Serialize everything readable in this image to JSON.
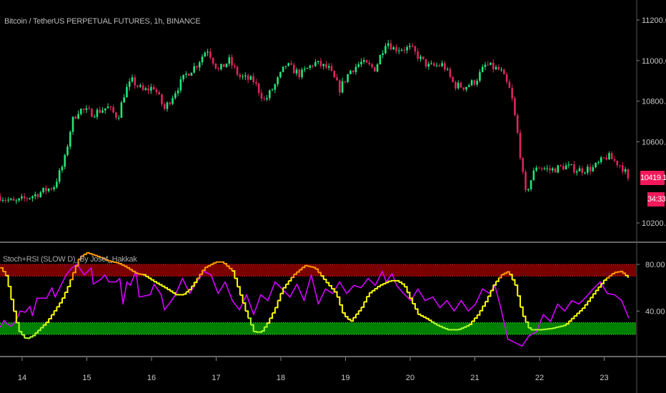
{
  "header": {
    "title": "Bitcoin / TetherUS PERPETUAL FUTURES, 1h, BINANCE"
  },
  "price_axis": {
    "ticks": [
      11200,
      11000,
      10800,
      10600,
      10200
    ],
    "tick_labels": [
      "11200.00",
      "11000.00",
      "10800.00",
      "10600.00",
      "10200.00"
    ],
    "last_price": "10419.14",
    "countdown": "34:33"
  },
  "indicator": {
    "title": "Stoch+RSI (SLOW D)_By Josef_Hakkak",
    "ticks": [
      80,
      40
    ],
    "tick_labels": [
      "80.00",
      "40.00"
    ],
    "overbought_band": [
      70,
      80
    ],
    "oversold_band": [
      20,
      30
    ]
  },
  "time_axis": {
    "labels": [
      "14",
      "15",
      "16",
      "17",
      "18",
      "19",
      "20",
      "21",
      "22",
      "23"
    ]
  },
  "colors": {
    "background": "#000000",
    "up_candle": "#22e67a",
    "down_candle": "#e0245e",
    "stoch": "#ffff00",
    "stoch_high": "#ff9800",
    "stoch_low": "#adff2f",
    "rsi": "#d400ff",
    "overbought_fill": "#7a0000",
    "oversold_fill": "#008000",
    "price_tag": "#f2195a"
  },
  "chart_data": [
    {
      "type": "candlestick",
      "x_unit": "day of month",
      "price_path": [
        [
          13.66,
          10330
        ],
        [
          13.88,
          10300
        ],
        [
          14.21,
          10340
        ],
        [
          14.49,
          10380
        ],
        [
          14.65,
          10500
        ],
        [
          14.77,
          10700
        ],
        [
          14.88,
          10760
        ],
        [
          15.1,
          10740
        ],
        [
          15.32,
          10770
        ],
        [
          15.48,
          10720
        ],
        [
          15.59,
          10850
        ],
        [
          15.7,
          10900
        ],
        [
          15.87,
          10850
        ],
        [
          16.04,
          10870
        ],
        [
          16.2,
          10760
        ],
        [
          16.37,
          10850
        ],
        [
          16.53,
          10930
        ],
        [
          16.7,
          10980
        ],
        [
          16.86,
          11060
        ],
        [
          17.03,
          10950
        ],
        [
          17.2,
          11000
        ],
        [
          17.36,
          10920
        ],
        [
          17.58,
          10900
        ],
        [
          17.75,
          10800
        ],
        [
          17.91,
          10880
        ],
        [
          18.08,
          10980
        ],
        [
          18.3,
          10930
        ],
        [
          18.52,
          10990
        ],
        [
          18.74,
          10960
        ],
        [
          18.91,
          10860
        ],
        [
          19.07,
          10950
        ],
        [
          19.24,
          10990
        ],
        [
          19.46,
          10960
        ],
        [
          19.63,
          11100
        ],
        [
          19.74,
          11060
        ],
        [
          20.01,
          11060
        ],
        [
          20.18,
          11000
        ],
        [
          20.29,
          10970
        ],
        [
          20.51,
          10980
        ],
        [
          20.68,
          10880
        ],
        [
          20.84,
          10870
        ],
        [
          21.01,
          10900
        ],
        [
          21.17,
          10980
        ],
        [
          21.4,
          10950
        ],
        [
          21.56,
          10840
        ],
        [
          21.67,
          10620
        ],
        [
          21.78,
          10340
        ],
        [
          21.95,
          10480
        ],
        [
          22.17,
          10460
        ],
        [
          22.39,
          10480
        ],
        [
          22.61,
          10460
        ],
        [
          22.83,
          10470
        ],
        [
          23.05,
          10530
        ],
        [
          23.27,
          10480
        ],
        [
          23.38,
          10419.14
        ]
      ],
      "ylim": [
        10100,
        11300
      ]
    },
    {
      "type": "line",
      "ylim": [
        0,
        100
      ],
      "series": [
        {
          "key": "stoch",
          "points": [
            [
              13.66,
              77
            ],
            [
              13.74,
              71
            ],
            [
              13.77,
              65
            ],
            [
              13.83,
              49
            ],
            [
              13.88,
              37
            ],
            [
              13.94,
              23
            ],
            [
              14.05,
              16
            ],
            [
              14.16,
              19
            ],
            [
              14.27,
              25
            ],
            [
              14.38,
              31
            ],
            [
              14.49,
              40
            ],
            [
              14.6,
              49
            ],
            [
              14.71,
              62
            ],
            [
              14.77,
              71
            ],
            [
              14.88,
              86
            ],
            [
              14.99,
              90
            ],
            [
              15.15,
              87
            ],
            [
              15.32,
              83
            ],
            [
              15.48,
              81
            ],
            [
              15.59,
              78
            ],
            [
              15.76,
              72
            ],
            [
              15.87,
              71
            ],
            [
              16.04,
              65
            ],
            [
              16.2,
              60
            ],
            [
              16.37,
              54
            ],
            [
              16.48,
              54
            ],
            [
              16.59,
              59
            ],
            [
              16.7,
              68
            ],
            [
              16.81,
              77
            ],
            [
              16.98,
              82
            ],
            [
              17.09,
              82
            ],
            [
              17.25,
              74
            ],
            [
              17.36,
              55
            ],
            [
              17.47,
              37
            ],
            [
              17.58,
              22
            ],
            [
              17.69,
              22
            ],
            [
              17.8,
              31
            ],
            [
              17.91,
              43
            ],
            [
              18.02,
              59
            ],
            [
              18.19,
              71
            ],
            [
              18.36,
              79
            ],
            [
              18.52,
              77
            ],
            [
              18.69,
              65
            ],
            [
              18.85,
              55
            ],
            [
              18.96,
              37
            ],
            [
              19.07,
              31
            ],
            [
              19.24,
              43
            ],
            [
              19.35,
              55
            ],
            [
              19.52,
              62
            ],
            [
              19.68,
              66
            ],
            [
              19.79,
              66
            ],
            [
              19.9,
              62
            ],
            [
              20.01,
              49
            ],
            [
              20.12,
              37
            ],
            [
              20.23,
              34
            ],
            [
              20.4,
              28
            ],
            [
              20.57,
              24
            ],
            [
              20.73,
              24
            ],
            [
              20.9,
              28
            ],
            [
              21.04,
              37
            ],
            [
              21.17,
              49
            ],
            [
              21.28,
              62
            ],
            [
              21.4,
              71
            ],
            [
              21.51,
              74
            ],
            [
              21.62,
              62
            ],
            [
              21.73,
              37
            ],
            [
              21.84,
              24
            ],
            [
              22.0,
              24
            ],
            [
              22.17,
              25
            ],
            [
              22.39,
              28
            ],
            [
              22.5,
              34
            ],
            [
              22.67,
              43
            ],
            [
              22.83,
              55
            ],
            [
              23.0,
              67
            ],
            [
              23.14,
              73
            ],
            [
              23.25,
              74
            ],
            [
              23.38,
              68
            ]
          ]
        },
        {
          "key": "rsi",
          "points": [
            [
              13.66,
              26
            ],
            [
              13.72,
              32
            ],
            [
              13.77,
              29
            ],
            [
              13.83,
              27
            ],
            [
              13.9,
              31
            ],
            [
              13.97,
              40
            ],
            [
              14.05,
              39
            ],
            [
              14.12,
              44
            ],
            [
              14.16,
              36
            ],
            [
              14.23,
              51
            ],
            [
              14.38,
              51
            ],
            [
              14.46,
              60
            ],
            [
              14.51,
              52
            ],
            [
              14.6,
              62
            ],
            [
              14.68,
              71
            ],
            [
              14.77,
              77
            ],
            [
              14.85,
              80
            ],
            [
              14.96,
              71
            ],
            [
              15.07,
              77
            ],
            [
              15.1,
              63
            ],
            [
              15.21,
              67
            ],
            [
              15.28,
              71
            ],
            [
              15.34,
              65
            ],
            [
              15.45,
              65
            ],
            [
              15.51,
              68
            ],
            [
              15.56,
              46
            ],
            [
              15.62,
              65
            ],
            [
              15.67,
              62
            ],
            [
              15.76,
              74
            ],
            [
              15.81,
              52
            ],
            [
              15.98,
              54
            ],
            [
              16.04,
              63
            ],
            [
              16.15,
              54
            ],
            [
              16.2,
              41
            ],
            [
              16.31,
              49
            ],
            [
              16.37,
              54
            ],
            [
              16.48,
              68
            ],
            [
              16.59,
              55
            ],
            [
              16.7,
              65
            ],
            [
              16.81,
              74
            ],
            [
              16.92,
              71
            ],
            [
              17.03,
              55
            ],
            [
              17.14,
              65
            ],
            [
              17.25,
              49
            ],
            [
              17.36,
              41
            ],
            [
              17.47,
              54
            ],
            [
              17.58,
              37
            ],
            [
              17.69,
              54
            ],
            [
              17.8,
              49
            ],
            [
              17.91,
              65
            ],
            [
              18.02,
              59
            ],
            [
              18.14,
              52
            ],
            [
              18.25,
              63
            ],
            [
              18.36,
              49
            ],
            [
              18.47,
              71
            ],
            [
              18.58,
              46
            ],
            [
              18.69,
              59
            ],
            [
              18.8,
              55
            ],
            [
              18.91,
              65
            ],
            [
              19.02,
              55
            ],
            [
              19.13,
              62
            ],
            [
              19.24,
              60
            ],
            [
              19.35,
              68
            ],
            [
              19.46,
              62
            ],
            [
              19.57,
              74
            ],
            [
              19.63,
              65
            ],
            [
              19.72,
              72
            ],
            [
              19.79,
              62
            ],
            [
              19.9,
              55
            ],
            [
              20.01,
              49
            ],
            [
              20.12,
              59
            ],
            [
              20.23,
              49
            ],
            [
              20.35,
              52
            ],
            [
              20.46,
              43
            ],
            [
              20.57,
              49
            ],
            [
              20.68,
              40
            ],
            [
              20.79,
              49
            ],
            [
              20.9,
              40
            ],
            [
              21.01,
              46
            ],
            [
              21.12,
              59
            ],
            [
              21.23,
              55
            ],
            [
              21.31,
              62
            ],
            [
              21.4,
              43
            ],
            [
              21.51,
              16
            ],
            [
              21.62,
              13
            ],
            [
              21.73,
              10
            ],
            [
              21.84,
              19
            ],
            [
              21.95,
              22
            ],
            [
              22.06,
              37
            ],
            [
              22.17,
              31
            ],
            [
              22.28,
              46
            ],
            [
              22.39,
              40
            ],
            [
              22.5,
              49
            ],
            [
              22.61,
              46
            ],
            [
              22.72,
              52
            ],
            [
              22.83,
              59
            ],
            [
              22.94,
              65
            ],
            [
              23.05,
              55
            ],
            [
              23.16,
              54
            ],
            [
              23.27,
              49
            ],
            [
              23.38,
              34
            ]
          ]
        }
      ]
    }
  ]
}
